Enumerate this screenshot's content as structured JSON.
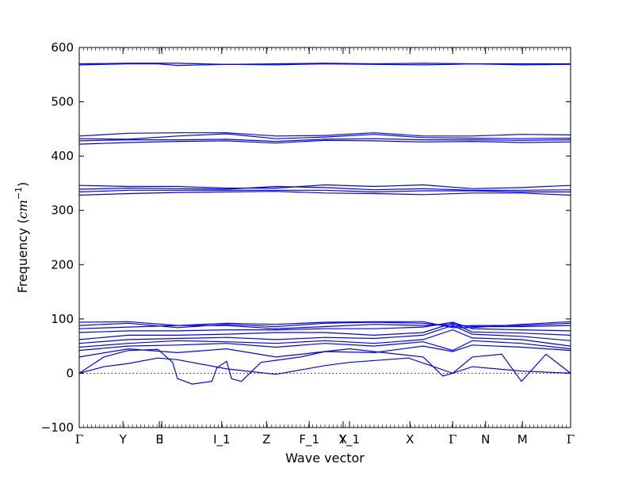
{
  "chart_data": {
    "type": "line",
    "title": "",
    "xlabel": "Wave vector",
    "ylabel": "Frequency ($cm^{-1}$)",
    "ylabel_plain": "Frequency (",
    "ylabel_math": "cm",
    "ylabel_sup": "−1",
    "ylabel_close": ")",
    "ylim": [
      -100,
      600
    ],
    "yticks": [
      -100,
      0,
      100,
      200,
      300,
      400,
      500,
      600
    ],
    "xlim": [
      0,
      1
    ],
    "grid": false,
    "zero_line": true,
    "high_symmetry_points": [
      {
        "label": "Γ",
        "x": 0.0
      },
      {
        "label": "Y",
        "x": 0.089
      },
      {
        "label": "E",
        "x": 0.163
      },
      {
        "label": "I",
        "x": 0.168
      },
      {
        "label": "I_1",
        "x": 0.29
      },
      {
        "label": "Z",
        "x": 0.381
      },
      {
        "label": "F_1",
        "x": 0.468
      },
      {
        "label": "X",
        "x": 0.537
      },
      {
        "label": "Y_1",
        "x": 0.55
      },
      {
        "label": "X",
        "x": 0.673
      },
      {
        "label": "Γ",
        "x": 0.76
      },
      {
        "label": "N",
        "x": 0.827
      },
      {
        "label": "M",
        "x": 0.902
      },
      {
        "label": "Γ",
        "x": 1.0
      }
    ],
    "series": [
      {
        "x": [
          0,
          0.05,
          0.1,
          0.16,
          0.2,
          0.3,
          0.4,
          0.5,
          0.6,
          0.7,
          0.76,
          0.8,
          0.9,
          1.0
        ],
        "y": [
          568,
          569,
          570,
          570,
          567,
          569,
          568,
          570,
          569,
          568,
          569,
          570,
          568,
          569
        ]
      },
      {
        "x": [
          0,
          0.1,
          0.2,
          0.3,
          0.4,
          0.5,
          0.6,
          0.7,
          0.8,
          0.9,
          1.0
        ],
        "y": [
          570,
          571,
          571,
          569,
          570,
          571,
          570,
          571,
          570,
          570,
          570
        ]
      },
      {
        "x": [
          0,
          0.1,
          0.2,
          0.3,
          0.4,
          0.5,
          0.6,
          0.7,
          0.8,
          0.9,
          1.0
        ],
        "y": [
          437,
          442,
          443,
          443,
          437,
          438,
          443,
          437,
          437,
          440,
          439
        ]
      },
      {
        "x": [
          0,
          0.1,
          0.2,
          0.3,
          0.4,
          0.5,
          0.6,
          0.7,
          0.8,
          0.9,
          1.0
        ],
        "y": [
          432,
          431,
          437,
          441,
          432,
          435,
          440,
          434,
          433,
          432,
          433
        ]
      },
      {
        "x": [
          0,
          0.1,
          0.2,
          0.3,
          0.4,
          0.5,
          0.6,
          0.7,
          0.8,
          0.9,
          1.0
        ],
        "y": [
          428,
          430,
          430,
          431,
          427,
          431,
          432,
          430,
          430,
          429,
          430
        ]
      },
      {
        "x": [
          0,
          0.1,
          0.2,
          0.3,
          0.4,
          0.5,
          0.6,
          0.7,
          0.8,
          0.9,
          1.0
        ],
        "y": [
          422,
          425,
          427,
          428,
          424,
          429,
          428,
          426,
          427,
          425,
          426
        ]
      },
      {
        "x": [
          0,
          0.1,
          0.2,
          0.3,
          0.4,
          0.5,
          0.6,
          0.7,
          0.8,
          0.9,
          1.0
        ],
        "y": [
          346,
          344,
          344,
          341,
          341,
          347,
          344,
          347,
          340,
          342,
          346
        ]
      },
      {
        "x": [
          0,
          0.1,
          0.2,
          0.3,
          0.4,
          0.5,
          0.6,
          0.7,
          0.8,
          0.9,
          1.0
        ],
        "y": [
          339,
          341,
          340,
          339,
          344,
          342,
          338,
          340,
          337,
          337,
          338
        ]
      },
      {
        "x": [
          0,
          0.1,
          0.2,
          0.3,
          0.4,
          0.5,
          0.6,
          0.7,
          0.8,
          0.9,
          1.0
        ],
        "y": [
          334,
          337,
          337,
          337,
          337,
          337,
          334,
          336,
          336,
          334,
          334
        ]
      },
      {
        "x": [
          0,
          0.1,
          0.2,
          0.3,
          0.4,
          0.5,
          0.6,
          0.7,
          0.8,
          0.9,
          1.0
        ],
        "y": [
          328,
          331,
          333,
          334,
          335,
          332,
          331,
          329,
          332,
          332,
          328
        ]
      },
      {
        "x": [
          0,
          0.05,
          0.1,
          0.16,
          0.2,
          0.3,
          0.4,
          0.5,
          0.55,
          0.67,
          0.76,
          0.8,
          0.9,
          1.0
        ],
        "y": [
          0,
          12,
          18,
          28,
          25,
          8,
          -2,
          14,
          20,
          28,
          0,
          12,
          4,
          0
        ]
      },
      {
        "x": [
          0,
          0.05,
          0.1,
          0.16,
          0.19,
          0.2,
          0.23,
          0.27,
          0.28,
          0.3,
          0.31,
          0.33,
          0.37,
          0.45,
          0.5,
          0.55,
          0.6,
          0.7,
          0.74,
          0.76,
          0.8,
          0.86,
          0.9,
          0.95,
          1.0
        ],
        "y": [
          0,
          30,
          42,
          44,
          20,
          -10,
          -20,
          -15,
          10,
          22,
          -10,
          -15,
          20,
          30,
          40,
          45,
          40,
          30,
          -5,
          0,
          30,
          35,
          -15,
          35,
          0
        ]
      },
      {
        "x": [
          0,
          0.1,
          0.2,
          0.3,
          0.4,
          0.5,
          0.6,
          0.7,
          0.76,
          0.8,
          0.9,
          1.0
        ],
        "y": [
          30,
          45,
          38,
          45,
          30,
          40,
          38,
          50,
          40,
          52,
          48,
          42
        ]
      },
      {
        "x": [
          0,
          0.1,
          0.2,
          0.3,
          0.4,
          0.5,
          0.6,
          0.7,
          0.76,
          0.8,
          0.9,
          1.0
        ],
        "y": [
          42,
          50,
          52,
          55,
          48,
          55,
          50,
          58,
          42,
          60,
          55,
          45
        ]
      },
      {
        "x": [
          0,
          0.1,
          0.2,
          0.3,
          0.4,
          0.5,
          0.6,
          0.7,
          0.76,
          0.8,
          0.9,
          1.0
        ],
        "y": [
          48,
          55,
          60,
          58,
          55,
          60,
          55,
          62,
          80,
          65,
          62,
          50
        ]
      },
      {
        "x": [
          0,
          0.1,
          0.2,
          0.3,
          0.4,
          0.5,
          0.6,
          0.7,
          0.76,
          0.8,
          0.9,
          1.0
        ],
        "y": [
          55,
          62,
          64,
          66,
          62,
          66,
          64,
          70,
          88,
          72,
          68,
          60
        ]
      },
      {
        "x": [
          0,
          0.1,
          0.2,
          0.3,
          0.4,
          0.5,
          0.6,
          0.7,
          0.76,
          0.8,
          0.9,
          1.0
        ],
        "y": [
          62,
          70,
          70,
          72,
          75,
          75,
          70,
          75,
          92,
          76,
          74,
          70
        ]
      },
      {
        "x": [
          0,
          0.1,
          0.2,
          0.3,
          0.4,
          0.5,
          0.6,
          0.7,
          0.76,
          0.8,
          0.9,
          1.0
        ],
        "y": [
          75,
          78,
          78,
          80,
          80,
          82,
          82,
          85,
          94,
          82,
          80,
          78
        ]
      },
      {
        "x": [
          0,
          0.1,
          0.2,
          0.3,
          0.4,
          0.5,
          0.6,
          0.7,
          0.76,
          0.8,
          0.9,
          1.0
        ],
        "y": [
          82,
          85,
          88,
          88,
          82,
          86,
          90,
          88,
          90,
          86,
          86,
          88
        ]
      },
      {
        "x": [
          0,
          0.1,
          0.2,
          0.3,
          0.4,
          0.5,
          0.6,
          0.7,
          0.76,
          0.8,
          0.9,
          1.0
        ],
        "y": [
          88,
          92,
          84,
          90,
          86,
          92,
          94,
          92,
          86,
          88,
          88,
          92
        ]
      },
      {
        "x": [
          0,
          0.1,
          0.2,
          0.3,
          0.4,
          0.5,
          0.6,
          0.7,
          0.76,
          0.8,
          0.9,
          1.0
        ],
        "y": [
          94,
          95,
          88,
          92,
          90,
          94,
          95,
          95,
          84,
          84,
          90,
          95
        ]
      }
    ]
  }
}
